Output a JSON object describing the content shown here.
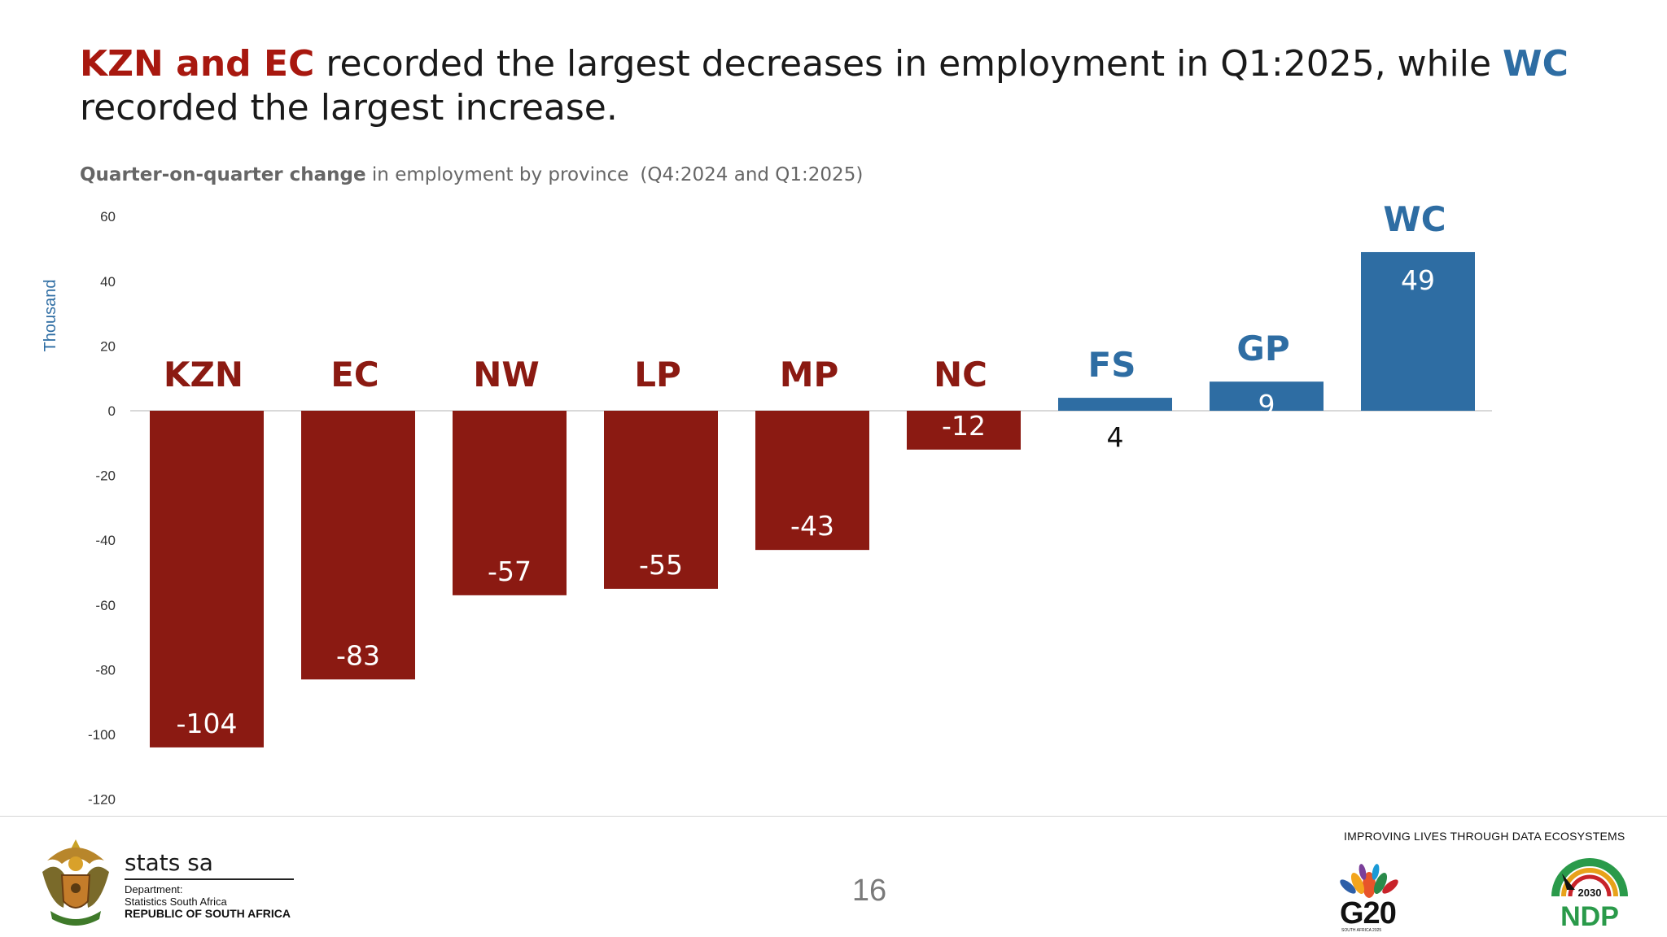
{
  "headline": {
    "part1": "KZN and EC",
    "part2": " recorded the largest decreases in employment in Q1:2025, while ",
    "part3": "WC",
    "part4": " recorded the largest increase."
  },
  "subtitle": {
    "bold": "Quarter-on-quarter change",
    "rest": " in employment by province",
    "period": "(Q4:2024 and Q1:2025)"
  },
  "colors": {
    "decrease": "#8b1a12",
    "increase": "#2e6da3",
    "axis_label": "#2e6da3",
    "tick_text": "#333333"
  },
  "chart_data": {
    "type": "bar",
    "categories": [
      "KZN",
      "EC",
      "NW",
      "LP",
      "MP",
      "NC",
      "FS",
      "GP",
      "WC"
    ],
    "values": [
      -104,
      -83,
      -57,
      -55,
      -43,
      -12,
      4,
      9,
      49
    ],
    "data_labels": [
      "-104",
      "-83",
      "-57",
      "-55",
      "-43",
      "-12",
      "4",
      "9",
      "49"
    ],
    "ylabel": "Thousand",
    "ylim": [
      -120,
      60
    ],
    "yticks": [
      60,
      40,
      20,
      0,
      -20,
      -40,
      -60,
      -80,
      -100,
      -120
    ],
    "grid": false
  },
  "footer": {
    "org_name": "stats sa",
    "dept_line1": "Department:",
    "dept_line2": "Statistics South Africa",
    "dept_line3": "REPUBLIC OF SOUTH AFRICA",
    "page_number": "16",
    "tagline": "IMPROVING LIVES THROUGH DATA ECOSYSTEMS",
    "g20_text": "G20",
    "g20_sub": "SOUTH AFRICA 2025",
    "ndp_year": "2030",
    "ndp_text": "NDP"
  }
}
